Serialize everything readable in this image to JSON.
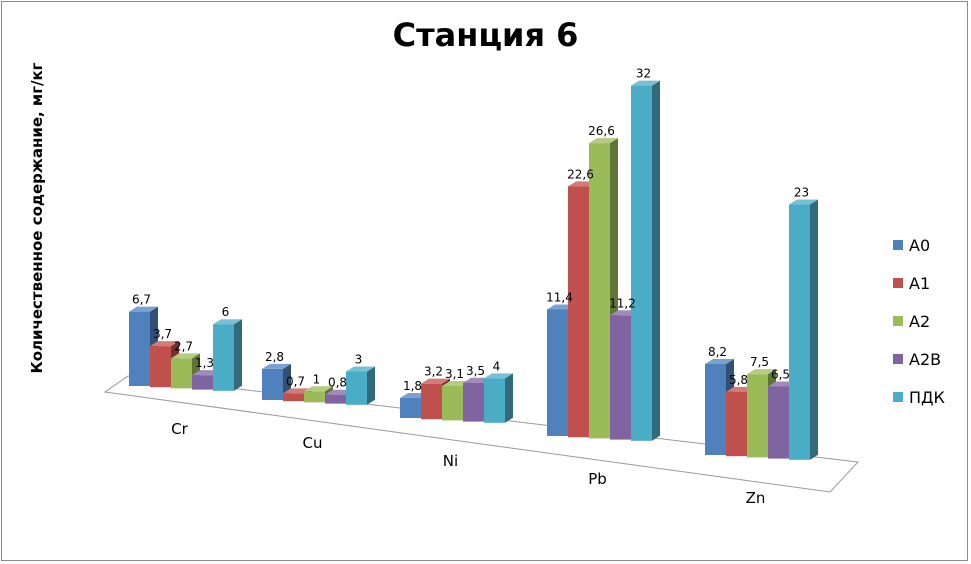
{
  "chart_data": {
    "type": "bar",
    "title": "Станция 6",
    "ylabel": "Количественное содержание, мг/кг",
    "xlabel": "",
    "categories": [
      "Cr",
      "Cu",
      "Ni",
      "Pb",
      "Zn"
    ],
    "series": [
      {
        "name": "А0",
        "color": "#4F81BD",
        "values": [
          6.7,
          2.8,
          1.8,
          11.4,
          8.2
        ],
        "labels": [
          "6,7",
          "2,8",
          "1,8",
          "11,4",
          "8,2"
        ]
      },
      {
        "name": "А1",
        "color": "#C0504D",
        "values": [
          3.7,
          0.7,
          3.2,
          22.6,
          5.8
        ],
        "labels": [
          "3,7",
          "0,7",
          "3,2",
          "22,6",
          "5,8"
        ]
      },
      {
        "name": "А2",
        "color": "#9BBB59",
        "values": [
          2.7,
          1,
          3.1,
          26.6,
          7.5
        ],
        "labels": [
          "2,7",
          "1",
          "3,1",
          "26,6",
          "7,5"
        ]
      },
      {
        "name": "А2В",
        "color": "#8064A2",
        "values": [
          1.3,
          0.8,
          3.5,
          11.2,
          6.5
        ],
        "labels": [
          "1,3",
          "0,8",
          "3,5",
          "11,2",
          "6,5"
        ]
      },
      {
        "name": "ПДК",
        "color": "#4BACC6",
        "values": [
          6,
          3,
          4,
          32,
          23
        ],
        "labels": [
          "6",
          "3",
          "4",
          "32",
          "23"
        ]
      }
    ],
    "legend_position": "right",
    "gridlines": false,
    "projection": "3d"
  }
}
